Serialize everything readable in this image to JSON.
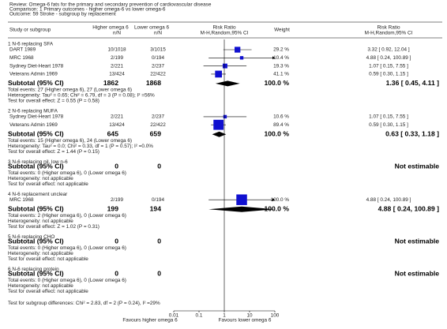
{
  "chart_data": {
    "type": "forest",
    "review": "Review:  Omega-6 fats for the primary and secondary prevention of cardiovascular disease",
    "comparison": "Comparison:  1 Primary outcomes - higher omega-6 vs lower omega-6",
    "outcome": "Outcome:  59 Stroke - subgroup by replacement",
    "columns": {
      "study": "Study or subgroup",
      "higher": "Higher omega 6",
      "higher_sub": "n/N",
      "lower": "Lower omega 6",
      "lower_sub": "n/N",
      "plot": "Risk Ratio",
      "plot_sub": "M-H,Random,95% CI",
      "weight": "Weight",
      "rr": "Risk Ratio",
      "rr_sub": "M-H,Random,95% CI"
    },
    "color": "#1010d0",
    "log_scale": true,
    "xlim": [
      0.01,
      100
    ],
    "xticks": [
      0.01,
      0.1,
      1,
      10,
      100
    ],
    "favours_left": "Favours higher omega 6",
    "favours_right": "Favours lower omega 6",
    "groups": [
      {
        "title": "1 N-6 replacing SFA",
        "studies": [
          {
            "name": "DART 1989",
            "higher": "10/1018",
            "lower": "3/1015",
            "weight": {
              "value": 29.2,
              "label": "29.2 %"
            },
            "rr": 3.32,
            "ci": [
              0.92,
              12.04
            ],
            "rr_label": "3.32 [ 0.92, 12.04 ]"
          },
          {
            "name": "MRC 1968",
            "higher": "2/199",
            "lower": "0/194",
            "weight": {
              "value": 10.4,
              "label": "10.4 %"
            },
            "rr": 4.88,
            "ci": [
              0.24,
              100.89
            ],
            "rr_label": "4.88 [ 0.24, 100.89 ]"
          },
          {
            "name": "Sydney Diet-Heart 1978",
            "higher": "2/221",
            "lower": "2/237",
            "weight": {
              "value": 19.3,
              "label": "19.3 %"
            },
            "rr": 1.07,
            "ci": [
              0.15,
              7.55
            ],
            "rr_label": "1.07 [ 0.15, 7.55 ]"
          },
          {
            "name": "Veterans Admin 1969",
            "higher": "13/424",
            "lower": "22/422",
            "weight": {
              "value": 41.1,
              "label": "41.1 %"
            },
            "rr": 0.59,
            "ci": [
              0.3,
              1.15
            ],
            "rr_label": "0.59 [ 0.30, 1.15 ]"
          }
        ],
        "subtotal": {
          "label": "Subtotal (95% CI)",
          "higher": 1862,
          "lower": 1868,
          "weight": {
            "value": 100.0,
            "label": "100.0 %"
          },
          "rr": 1.36,
          "ci": [
            0.45,
            4.11
          ],
          "rr_label": "1.36 [ 0.45, 4.11 ]"
        },
        "notes": [
          "Total events: 27 (Higher omega 6), 27 (Lower omega 6)",
          "Heterogeneity: Tau² = 0.65; Chi² = 6.79, df = 3 (P = 0.08); I² =56%",
          "Test for overall effect: Z = 0.55 (P = 0.58)"
        ]
      },
      {
        "title": "2 N-6 replacing MUFA",
        "studies": [
          {
            "name": "Sydney Diet-Heart 1978",
            "higher": "2/221",
            "lower": "2/237",
            "weight": {
              "value": 10.6,
              "label": "10.6 %"
            },
            "rr": 1.07,
            "ci": [
              0.15,
              7.55
            ],
            "rr_label": "1.07 [ 0.15, 7.55 ]"
          },
          {
            "name": "Veterans Admin 1969",
            "higher": "13/424",
            "lower": "22/422",
            "weight": {
              "value": 89.4,
              "label": "89.4 %"
            },
            "rr": 0.59,
            "ci": [
              0.3,
              1.15
            ],
            "rr_label": "0.59 [ 0.30, 1.15 ]"
          }
        ],
        "subtotal": {
          "label": "Subtotal (95% CI)",
          "higher": 645,
          "lower": 659,
          "weight": {
            "value": 100.0,
            "label": "100.0 %"
          },
          "rr": 0.63,
          "ci": [
            0.33,
            1.18
          ],
          "rr_label": "0.63 [ 0.33, 1.18 ]"
        },
        "notes": [
          "Total events: 15 (Higher omega 6), 24 (Lower omega 6)",
          "Heterogeneity: Tau² = 0.0; Chi² = 0.33, df = 1 (P = 0.57); I² =0.0%",
          "Test for overall effect: Z = 1.44 (P = 0.15)"
        ]
      },
      {
        "title": "3 N-6 replacing nil, low n-6",
        "studies": [],
        "subtotal": {
          "label": "Subtotal (95% CI)",
          "higher": 0,
          "lower": 0,
          "rr_label": "Not estimable"
        },
        "notes": [
          "Total events: 0 (Higher omega 6), 0 (Lower omega 6)",
          "Heterogeneity: not applicable",
          "Test for overall effect: not applicable"
        ]
      },
      {
        "title": "4 N-6 replacement unclear",
        "studies": [
          {
            "name": "MRC 1968",
            "higher": "2/199",
            "lower": "0/194",
            "weight": {
              "value": 100.0,
              "label": "100.0 %"
            },
            "rr": 4.88,
            "ci": [
              0.24,
              100.89
            ],
            "rr_label": "4.88 [ 0.24, 100.89 ]"
          }
        ],
        "subtotal": {
          "label": "Subtotal (95% CI)",
          "higher": 199,
          "lower": 194,
          "weight": {
            "value": 100.0,
            "label": "100.0 %"
          },
          "rr": 4.88,
          "ci": [
            0.24,
            100.89
          ],
          "rr_label": "4.88 [ 0.24, 100.89 ]"
        },
        "notes": [
          "Total events: 2 (Higher omega 6), 0 (Lower omega 6)",
          "Heterogeneity: not applicable",
          "Test for overall effect: Z = 1.02 (P = 0.31)"
        ]
      },
      {
        "title": "5 N-6 replacing CHO",
        "studies": [],
        "subtotal": {
          "label": "Subtotal (95% CI)",
          "higher": 0,
          "lower": 0,
          "rr_label": "Not estimable"
        },
        "notes": [
          "Total events: 0 (Higher omega 6), 0 (Lower omega 6)",
          "Heterogeneity: not applicable",
          "Test for overall effect: not applicable"
        ]
      },
      {
        "title": "6 N-6 replacing protein",
        "studies": [],
        "subtotal": {
          "label": "Subtotal (95% CI)",
          "higher": 0,
          "lower": 0,
          "rr_label": "Not estimable"
        },
        "notes": [
          "Total events: 0 (Higher omega 6), 0 (Lower omega 6)",
          "Heterogeneity: not applicable",
          "Test for overall effect: not applicable"
        ]
      }
    ],
    "subgroup_test": "Test for subgroup differences: Chi² = 2.83, df = 2 (P = 0.24), I² =29%"
  }
}
